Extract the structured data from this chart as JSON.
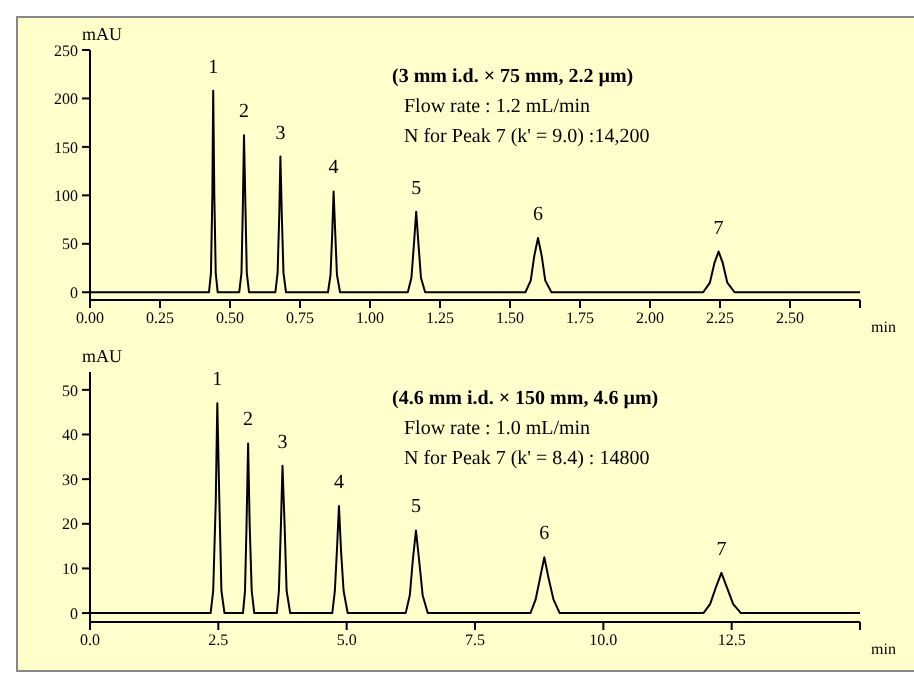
{
  "chart_data": [
    {
      "type": "line",
      "title": "(3 mm i.d. × 75 mm, 2.2 µm)",
      "annotations": [
        "Flow rate : 1.2 mL/min",
        "N for Peak 7 (k' = 9.0) :14,200",
        {
          "text": "1",
          "x": 0.44,
          "y": 208
        },
        {
          "text": "2",
          "x": 0.55,
          "y": 162
        },
        {
          "text": "3",
          "x": 0.68,
          "y": 140
        },
        {
          "text": "4",
          "x": 0.87,
          "y": 104
        },
        {
          "text": "5",
          "x": 1.165,
          "y": 83
        },
        {
          "text": "6",
          "x": 1.6,
          "y": 56
        },
        {
          "text": "7",
          "x": 2.245,
          "y": 42
        }
      ],
      "xlabel": "min",
      "ylabel": "mAU",
      "xlim": [
        0,
        2.75
      ],
      "ylim": [
        -8,
        250
      ],
      "xticks": [
        {
          "value": 0,
          "label": "0.00"
        },
        {
          "value": 0.25,
          "label": "0.25"
        },
        {
          "value": 0.5,
          "label": "0.50"
        },
        {
          "value": 0.75,
          "label": "0.75"
        },
        {
          "value": 1,
          "label": "1.00"
        },
        {
          "value": 1.25,
          "label": "1.25"
        },
        {
          "value": 1.5,
          "label": "1.50"
        },
        {
          "value": 1.75,
          "label": "1.75"
        },
        {
          "value": 2,
          "label": "2.00"
        },
        {
          "value": 2.25,
          "label": "2.25"
        },
        {
          "value": 2.5,
          "label": "2.50"
        },
        {
          "value": 2.75,
          "label": null
        }
      ],
      "yticks": [
        0,
        50,
        100,
        150,
        200,
        250
      ],
      "grid": false,
      "legend": false,
      "marker": "none",
      "line_style": "solid",
      "x": [
        0,
        0.425,
        0.432,
        0.437,
        0.44,
        0.444,
        0.449,
        0.456,
        0.533,
        0.541,
        0.546,
        0.55,
        0.555,
        0.56,
        0.568,
        0.662,
        0.67,
        0.676,
        0.68,
        0.685,
        0.691,
        0.7,
        0.85,
        0.859,
        0.865,
        0.87,
        0.876,
        0.882,
        0.893,
        1.135,
        1.148,
        1.157,
        1.165,
        1.173,
        1.182,
        1.197,
        1.555,
        1.574,
        1.587,
        1.6,
        1.613,
        1.626,
        1.648,
        2.19,
        2.214,
        2.23,
        2.245,
        2.26,
        2.276,
        2.302,
        2.75
      ],
      "series": [
        {
          "color": "#000000",
          "values": [
            0,
            0,
            20,
            100,
            208,
            100,
            20,
            0,
            0,
            20,
            90,
            162,
            90,
            20,
            0,
            0,
            20,
            80,
            140,
            80,
            20,
            0,
            0,
            18,
            60,
            104,
            60,
            18,
            0,
            0,
            15,
            50,
            83,
            50,
            15,
            0,
            0,
            12,
            38,
            56,
            38,
            12,
            0,
            0,
            10,
            30,
            42,
            30,
            10,
            0,
            0
          ]
        }
      ]
    },
    {
      "type": "line",
      "title": "(4.6 mm i.d. × 150 mm, 4.6 µm)",
      "annotations": [
        "Flow rate : 1.0 mL/min",
        "N for Peak 7 (k' = 8.4) : 14800",
        {
          "text": "1",
          "x": 2.48,
          "y": 47
        },
        {
          "text": "2",
          "x": 3.08,
          "y": 38
        },
        {
          "text": "3",
          "x": 3.75,
          "y": 33
        },
        {
          "text": "4",
          "x": 4.85,
          "y": 24
        },
        {
          "text": "5",
          "x": 6.35,
          "y": 18.5
        },
        {
          "text": "6",
          "x": 8.85,
          "y": 12.5
        },
        {
          "text": "7",
          "x": 12.3,
          "y": 9
        }
      ],
      "xlabel": "min",
      "ylabel": "mAU",
      "xlim": [
        0,
        15
      ],
      "ylim": [
        -2,
        54
      ],
      "xticks": [
        {
          "value": 0,
          "label": "0.0"
        },
        {
          "value": 2.5,
          "label": "2.5"
        },
        {
          "value": 5,
          "label": "5.0"
        },
        {
          "value": 7.5,
          "label": "7.5"
        },
        {
          "value": 10,
          "label": "10.0"
        },
        {
          "value": 12.5,
          "label": "12.5"
        },
        {
          "value": 15,
          "label": null
        }
      ],
      "yticks": [
        0,
        10,
        20,
        30,
        40,
        50
      ],
      "grid": false,
      "legend": false,
      "marker": "none",
      "line_style": "solid",
      "x": [
        0,
        2.35,
        2.4,
        2.45,
        2.48,
        2.52,
        2.56,
        2.62,
        2.98,
        3.02,
        3.05,
        3.08,
        3.11,
        3.15,
        3.2,
        3.64,
        3.68,
        3.72,
        3.75,
        3.79,
        3.83,
        3.9,
        4.72,
        4.77,
        4.81,
        4.85,
        4.89,
        4.94,
        5.02,
        6.15,
        6.23,
        6.29,
        6.35,
        6.41,
        6.48,
        6.58,
        8.58,
        8.68,
        8.77,
        8.85,
        8.93,
        9.03,
        9.15,
        11.95,
        12.08,
        12.2,
        12.3,
        12.4,
        12.53,
        12.68,
        15
      ],
      "series": [
        {
          "color": "#000000",
          "values": [
            0,
            0,
            5,
            25,
            47,
            25,
            5,
            0,
            0,
            5,
            20,
            38,
            20,
            5,
            0,
            0,
            5,
            20,
            33,
            20,
            5,
            0,
            0,
            5,
            14,
            24,
            14,
            5,
            0,
            0,
            4,
            12,
            18.5,
            12,
            4,
            0,
            0,
            3,
            8,
            12.5,
            8,
            3,
            0,
            0,
            2,
            6,
            9,
            6,
            2,
            0,
            0
          ]
        }
      ]
    }
  ]
}
